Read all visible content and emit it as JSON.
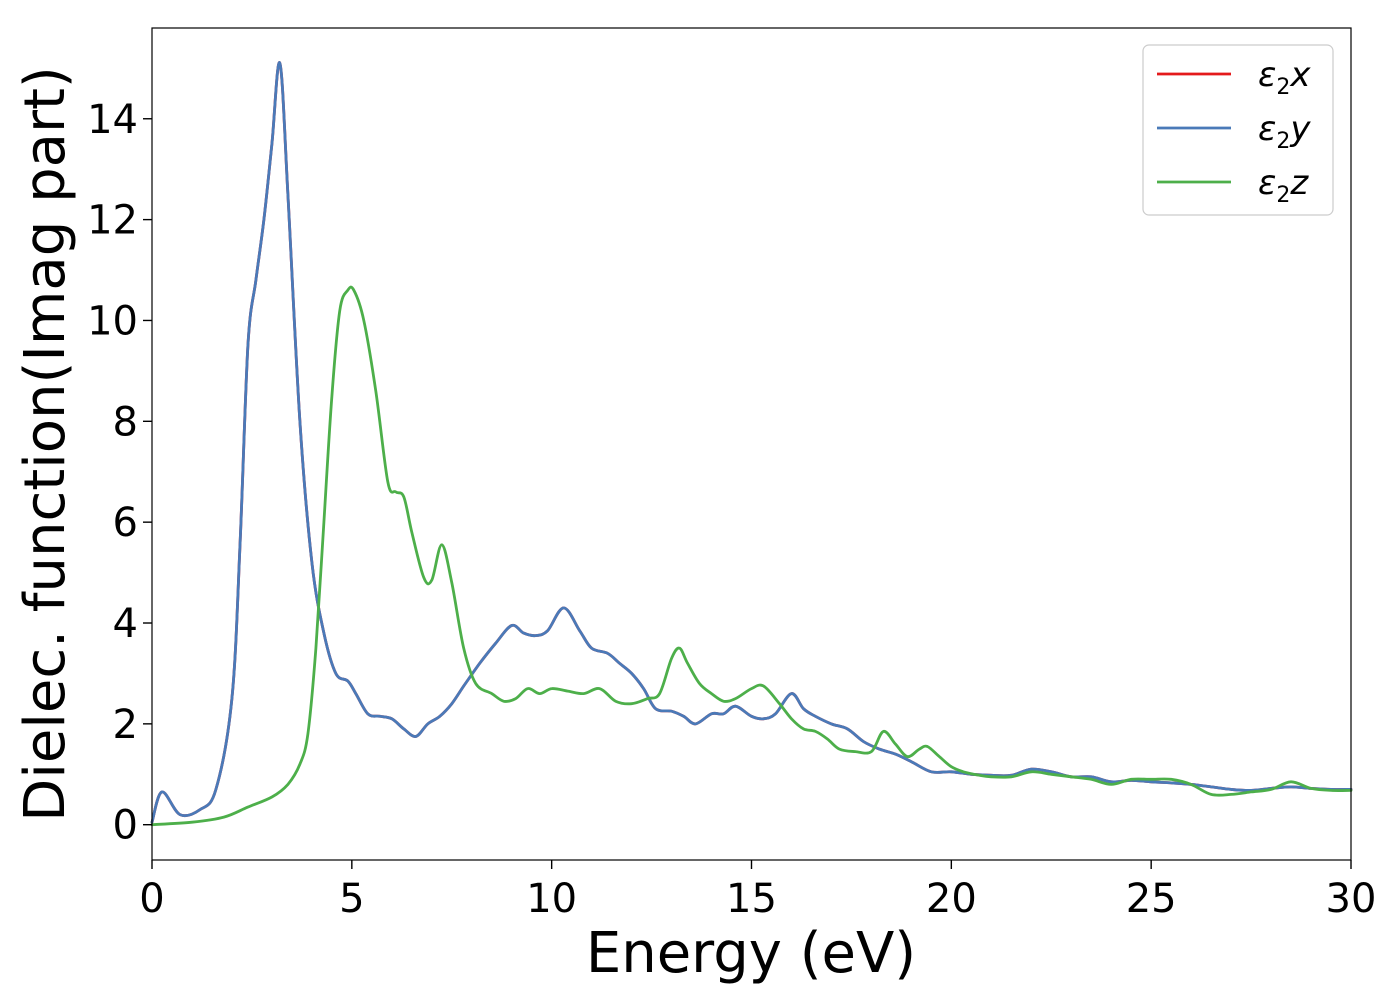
{
  "chart_data": {
    "type": "line",
    "xlabel": "Energy (eV)",
    "ylabel": "Dielec. function(Imag part)",
    "xlim": [
      0,
      30
    ],
    "ylim": [
      -0.7,
      15.8
    ],
    "xticks": [
      0,
      5,
      10,
      15,
      20,
      25,
      30
    ],
    "yticks": [
      0,
      2,
      4,
      6,
      8,
      10,
      12,
      14
    ],
    "grid": false,
    "legend_position": "top-right",
    "series": [
      {
        "name": "ε2x",
        "legend_base": "ε",
        "legend_sub": "2",
        "legend_tail": "x",
        "color": "#e41a1c",
        "x": [
          0,
          0.25,
          0.7,
          1.2,
          1.6,
          2.0,
          2.2,
          2.4,
          2.6,
          2.8,
          3.0,
          3.2,
          3.4,
          3.7,
          4.0,
          4.3,
          4.6,
          4.9,
          5.1,
          5.4,
          5.7,
          6.0,
          6.3,
          6.6,
          6.9,
          7.2,
          7.5,
          7.8,
          8.2,
          8.6,
          9.0,
          9.3,
          9.6,
          9.9,
          10.3,
          10.7,
          11.0,
          11.4,
          11.7,
          12.0,
          12.3,
          12.6,
          13.0,
          13.3,
          13.6,
          14.0,
          14.3,
          14.6,
          15.0,
          15.3,
          15.6,
          16.0,
          16.3,
          16.6,
          17.0,
          17.4,
          17.8,
          18.2,
          18.6,
          19.0,
          19.5,
          20.0,
          20.5,
          21.0,
          21.5,
          22.0,
          22.5,
          23.0,
          23.5,
          24.0,
          24.5,
          25.0,
          25.5,
          26.0,
          26.5,
          27.0,
          27.5,
          28.0,
          28.5,
          29.0,
          29.5,
          30.0
        ],
        "y": [
          0.05,
          0.65,
          0.2,
          0.3,
          0.7,
          2.5,
          5.5,
          9.5,
          10.8,
          12.0,
          13.5,
          15.1,
          12.5,
          8.0,
          5.2,
          3.8,
          3.0,
          2.85,
          2.6,
          2.2,
          2.15,
          2.1,
          1.9,
          1.75,
          2.0,
          2.15,
          2.4,
          2.75,
          3.2,
          3.6,
          3.95,
          3.8,
          3.75,
          3.85,
          4.3,
          3.85,
          3.5,
          3.4,
          3.2,
          3.0,
          2.7,
          2.3,
          2.25,
          2.15,
          2.0,
          2.2,
          2.2,
          2.35,
          2.15,
          2.1,
          2.2,
          2.6,
          2.3,
          2.15,
          2.0,
          1.9,
          1.65,
          1.5,
          1.4,
          1.25,
          1.05,
          1.05,
          1.0,
          0.98,
          0.98,
          1.1,
          1.05,
          0.95,
          0.95,
          0.85,
          0.88,
          0.85,
          0.83,
          0.8,
          0.75,
          0.7,
          0.68,
          0.72,
          0.75,
          0.72,
          0.7,
          0.7
        ]
      },
      {
        "name": "ε2y",
        "legend_base": "ε",
        "legend_sub": "2",
        "legend_tail": "y",
        "color": "#4a7ab8",
        "x": [
          0,
          0.25,
          0.7,
          1.2,
          1.6,
          2.0,
          2.2,
          2.4,
          2.6,
          2.8,
          3.0,
          3.2,
          3.4,
          3.7,
          4.0,
          4.3,
          4.6,
          4.9,
          5.1,
          5.4,
          5.7,
          6.0,
          6.3,
          6.6,
          6.9,
          7.2,
          7.5,
          7.8,
          8.2,
          8.6,
          9.0,
          9.3,
          9.6,
          9.9,
          10.3,
          10.7,
          11.0,
          11.4,
          11.7,
          12.0,
          12.3,
          12.6,
          13.0,
          13.3,
          13.6,
          14.0,
          14.3,
          14.6,
          15.0,
          15.3,
          15.6,
          16.0,
          16.3,
          16.6,
          17.0,
          17.4,
          17.8,
          18.2,
          18.6,
          19.0,
          19.5,
          20.0,
          20.5,
          21.0,
          21.5,
          22.0,
          22.5,
          23.0,
          23.5,
          24.0,
          24.5,
          25.0,
          25.5,
          26.0,
          26.5,
          27.0,
          27.5,
          28.0,
          28.5,
          29.0,
          29.5,
          30.0
        ],
        "y": [
          0.05,
          0.65,
          0.2,
          0.3,
          0.7,
          2.5,
          5.5,
          9.5,
          10.8,
          12.0,
          13.5,
          15.1,
          12.5,
          8.0,
          5.2,
          3.8,
          3.0,
          2.85,
          2.6,
          2.2,
          2.15,
          2.1,
          1.9,
          1.75,
          2.0,
          2.15,
          2.4,
          2.75,
          3.2,
          3.6,
          3.95,
          3.8,
          3.75,
          3.85,
          4.3,
          3.85,
          3.5,
          3.4,
          3.2,
          3.0,
          2.7,
          2.3,
          2.25,
          2.15,
          2.0,
          2.2,
          2.2,
          2.35,
          2.15,
          2.1,
          2.2,
          2.6,
          2.3,
          2.15,
          2.0,
          1.9,
          1.65,
          1.5,
          1.4,
          1.25,
          1.05,
          1.05,
          1.0,
          0.98,
          0.98,
          1.1,
          1.05,
          0.95,
          0.95,
          0.85,
          0.88,
          0.85,
          0.83,
          0.8,
          0.75,
          0.7,
          0.68,
          0.72,
          0.75,
          0.72,
          0.7,
          0.7
        ]
      },
      {
        "name": "ε2z",
        "legend_base": "ε",
        "legend_sub": "2",
        "legend_tail": "z",
        "color": "#4daf4a",
        "x": [
          0,
          1.0,
          1.8,
          2.4,
          3.0,
          3.4,
          3.7,
          3.9,
          4.1,
          4.3,
          4.5,
          4.7,
          4.9,
          5.05,
          5.3,
          5.6,
          5.9,
          6.1,
          6.3,
          6.5,
          6.8,
          7.0,
          7.25,
          7.5,
          7.8,
          8.1,
          8.5,
          8.8,
          9.1,
          9.4,
          9.7,
          10.0,
          10.4,
          10.8,
          11.2,
          11.6,
          12.0,
          12.4,
          12.7,
          13.0,
          13.2,
          13.4,
          13.7,
          14.0,
          14.3,
          14.6,
          15.0,
          15.3,
          15.7,
          16.0,
          16.3,
          16.6,
          16.9,
          17.2,
          17.6,
          18.0,
          18.3,
          18.6,
          18.9,
          19.2,
          19.4,
          19.7,
          20.0,
          20.3,
          20.7,
          21.0,
          21.5,
          22.0,
          22.5,
          23.0,
          23.5,
          24.0,
          24.5,
          25.0,
          25.5,
          26.0,
          26.5,
          27.0,
          27.5,
          28.0,
          28.5,
          29.0,
          29.5,
          30.0
        ],
        "y": [
          0.0,
          0.05,
          0.15,
          0.35,
          0.55,
          0.8,
          1.2,
          1.8,
          3.5,
          6.0,
          8.5,
          10.2,
          10.6,
          10.6,
          10.0,
          8.6,
          6.8,
          6.6,
          6.5,
          5.8,
          4.9,
          4.85,
          5.55,
          4.8,
          3.5,
          2.8,
          2.6,
          2.45,
          2.5,
          2.7,
          2.6,
          2.7,
          2.65,
          2.6,
          2.7,
          2.45,
          2.4,
          2.5,
          2.6,
          3.3,
          3.5,
          3.2,
          2.8,
          2.6,
          2.45,
          2.5,
          2.7,
          2.75,
          2.4,
          2.1,
          1.9,
          1.85,
          1.7,
          1.5,
          1.45,
          1.45,
          1.85,
          1.6,
          1.35,
          1.5,
          1.55,
          1.35,
          1.15,
          1.05,
          0.98,
          0.95,
          0.95,
          1.05,
          1.0,
          0.95,
          0.9,
          0.8,
          0.9,
          0.9,
          0.9,
          0.8,
          0.6,
          0.6,
          0.65,
          0.7,
          0.85,
          0.72,
          0.68,
          0.68
        ]
      }
    ]
  }
}
